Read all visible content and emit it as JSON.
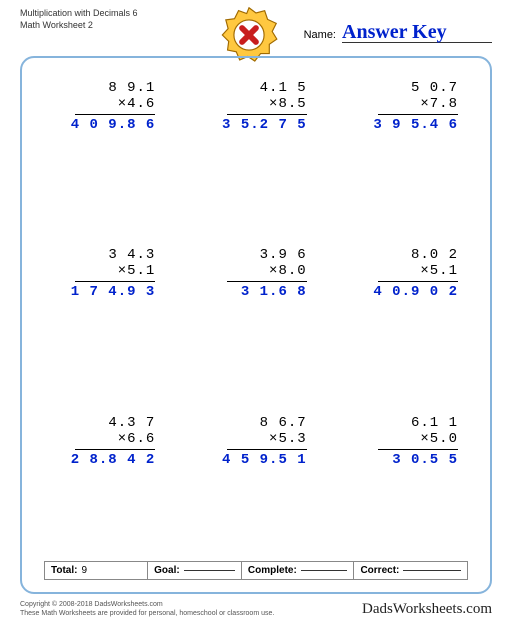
{
  "colors": {
    "frame": "#86b4dc",
    "answer": "#0022cc",
    "badge_outer": "#ffc840",
    "badge_inner": "#ffffff",
    "badge_x": "#c81e1e"
  },
  "header": {
    "line1": "Multiplication with Decimals 6",
    "line2": "Math Worksheet 2"
  },
  "name": {
    "label": "Name:",
    "value": "Answer Key"
  },
  "problems": [
    {
      "top": "8 9.1",
      "bot": "4.6",
      "ans": "4 0 9.8 6"
    },
    {
      "top": "4.1 5",
      "bot": "8.5",
      "ans": "3 5.2 7 5"
    },
    {
      "top": "5 0.7",
      "bot": "7.8",
      "ans": "3 9 5.4 6"
    },
    {
      "top": "3 4.3",
      "bot": "5.1",
      "ans": "1 7 4.9 3"
    },
    {
      "top": "3.9 6",
      "bot": "8.0",
      "ans": "3 1.6 8"
    },
    {
      "top": "8.0 2",
      "bot": "5.1",
      "ans": "4 0.9 0 2"
    },
    {
      "top": "4.3 7",
      "bot": "6.6",
      "ans": "2 8.8 4 2"
    },
    {
      "top": "8 6.7",
      "bot": "5.3",
      "ans": "4 5 9.5 1"
    },
    {
      "top": "6.1 1",
      "bot": "5.0",
      "ans": "3 0.5 5"
    }
  ],
  "footer": {
    "total_label": "Total:",
    "total_value": "9",
    "goal_label": "Goal:",
    "complete_label": "Complete:",
    "correct_label": "Correct:"
  },
  "copyright": {
    "line1": "Copyright © 2008-2018 DadsWorksheets.com",
    "line2": "These Math Worksheets are provided for personal, homeschool or classroom use."
  },
  "brand": "DadsWorksheets.com"
}
